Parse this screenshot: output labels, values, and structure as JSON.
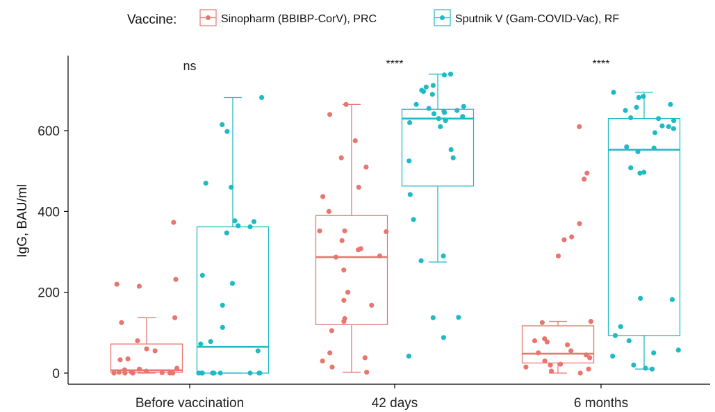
{
  "chart_data": {
    "type": "box",
    "title": "",
    "xlabel": "",
    "ylabel": "IgG, BAU/ml",
    "ylim": [
      -30,
      750
    ],
    "yticks": [
      0,
      200,
      400,
      600
    ],
    "categories": [
      "Before vaccination",
      "42 days",
      "6 months"
    ],
    "legend": {
      "title": "Vaccine:",
      "position": "top"
    },
    "annotations": [
      "ns",
      "****",
      "****"
    ],
    "grid": false,
    "series": [
      {
        "name": "Sinopharm (BBIBP-CorV), PRC",
        "color": "#E8766F",
        "boxes": [
          {
            "category": "Before vaccination",
            "whisker_low": 0,
            "q1": 2,
            "median": 7,
            "q3": 72,
            "whisker_high": 137
          },
          {
            "category": "42 days",
            "whisker_low": 2,
            "q1": 120,
            "median": 287,
            "q3": 390,
            "whisker_high": 665
          },
          {
            "category": "6 months",
            "whisker_low": 0,
            "q1": 25,
            "median": 48,
            "q3": 117,
            "whisker_high": 128
          }
        ],
        "points": [
          [
            0,
            373
          ],
          [
            0,
            232
          ],
          [
            0,
            220
          ],
          [
            0,
            215
          ],
          [
            0,
            137
          ],
          [
            0,
            125
          ],
          [
            0,
            80
          ],
          [
            0,
            60
          ],
          [
            0,
            55
          ],
          [
            0,
            35
          ],
          [
            0,
            33
          ],
          [
            0,
            12
          ],
          [
            0,
            10
          ],
          [
            0,
            8
          ],
          [
            0,
            5
          ],
          [
            0,
            3
          ],
          [
            0,
            2
          ],
          [
            0,
            1
          ],
          [
            0,
            0
          ],
          [
            0,
            0
          ],
          [
            0,
            0
          ],
          [
            0,
            0
          ],
          [
            0,
            0
          ],
          [
            0,
            0
          ],
          [
            1,
            665
          ],
          [
            1,
            640
          ],
          [
            1,
            575
          ],
          [
            1,
            533
          ],
          [
            1,
            510
          ],
          [
            1,
            460
          ],
          [
            1,
            437
          ],
          [
            1,
            400
          ],
          [
            1,
            352
          ],
          [
            1,
            352
          ],
          [
            1,
            350
          ],
          [
            1,
            328
          ],
          [
            1,
            308
          ],
          [
            1,
            305
          ],
          [
            1,
            290
          ],
          [
            1,
            287
          ],
          [
            1,
            255
          ],
          [
            1,
            200
          ],
          [
            1,
            180
          ],
          [
            1,
            168
          ],
          [
            1,
            135
          ],
          [
            1,
            128
          ],
          [
            1,
            105
          ],
          [
            1,
            50
          ],
          [
            1,
            38
          ],
          [
            1,
            30
          ],
          [
            1,
            15
          ],
          [
            1,
            2
          ],
          [
            2,
            610
          ],
          [
            2,
            495
          ],
          [
            2,
            480
          ],
          [
            2,
            370
          ],
          [
            2,
            337
          ],
          [
            2,
            330
          ],
          [
            2,
            290
          ],
          [
            2,
            128
          ],
          [
            2,
            125
          ],
          [
            2,
            85
          ],
          [
            2,
            80
          ],
          [
            2,
            77
          ],
          [
            2,
            70
          ],
          [
            2,
            55
          ],
          [
            2,
            50
          ],
          [
            2,
            45
          ],
          [
            2,
            38
          ],
          [
            2,
            30
          ],
          [
            2,
            22
          ],
          [
            2,
            20
          ],
          [
            2,
            15
          ],
          [
            2,
            10
          ],
          [
            2,
            5
          ],
          [
            2,
            0
          ]
        ]
      },
      {
        "name": "Sputnik V (Gam-COVID-Vac), RF",
        "color": "#1FBBC4",
        "boxes": [
          {
            "category": "Before vaccination",
            "whisker_low": 0,
            "q1": 0,
            "median": 65,
            "q3": 362,
            "whisker_high": 682
          },
          {
            "category": "42 days",
            "whisker_low": 275,
            "q1": 463,
            "median": 630,
            "q3": 653,
            "whisker_high": 740
          },
          {
            "category": "6 months",
            "whisker_low": 10,
            "q1": 93,
            "median": 553,
            "q3": 630,
            "whisker_high": 695
          }
        ],
        "points": [
          [
            0,
            682
          ],
          [
            0,
            615
          ],
          [
            0,
            598
          ],
          [
            0,
            470
          ],
          [
            0,
            460
          ],
          [
            0,
            377
          ],
          [
            0,
            375
          ],
          [
            0,
            365
          ],
          [
            0,
            362
          ],
          [
            0,
            347
          ],
          [
            0,
            242
          ],
          [
            0,
            222
          ],
          [
            0,
            168
          ],
          [
            0,
            113
          ],
          [
            0,
            78
          ],
          [
            0,
            72
          ],
          [
            0,
            55
          ],
          [
            0,
            0
          ],
          [
            0,
            0
          ],
          [
            0,
            0
          ],
          [
            0,
            0
          ],
          [
            0,
            0
          ],
          [
            0,
            0
          ],
          [
            0,
            0
          ],
          [
            0,
            0
          ],
          [
            0,
            0
          ],
          [
            1,
            740
          ],
          [
            1,
            738
          ],
          [
            1,
            712
          ],
          [
            1,
            708
          ],
          [
            1,
            700
          ],
          [
            1,
            697
          ],
          [
            1,
            690
          ],
          [
            1,
            665
          ],
          [
            1,
            660
          ],
          [
            1,
            655
          ],
          [
            1,
            650
          ],
          [
            1,
            648
          ],
          [
            1,
            645
          ],
          [
            1,
            642
          ],
          [
            1,
            635
          ],
          [
            1,
            630
          ],
          [
            1,
            625
          ],
          [
            1,
            620
          ],
          [
            1,
            610
          ],
          [
            1,
            553
          ],
          [
            1,
            533
          ],
          [
            1,
            525
          ],
          [
            1,
            442
          ],
          [
            1,
            380
          ],
          [
            1,
            290
          ],
          [
            1,
            278
          ],
          [
            1,
            138
          ],
          [
            1,
            137
          ],
          [
            1,
            88
          ],
          [
            1,
            42
          ],
          [
            2,
            695
          ],
          [
            2,
            685
          ],
          [
            2,
            682
          ],
          [
            2,
            665
          ],
          [
            2,
            658
          ],
          [
            2,
            650
          ],
          [
            2,
            632
          ],
          [
            2,
            630
          ],
          [
            2,
            625
          ],
          [
            2,
            612
          ],
          [
            2,
            610
          ],
          [
            2,
            605
          ],
          [
            2,
            595
          ],
          [
            2,
            560
          ],
          [
            2,
            557
          ],
          [
            2,
            548
          ],
          [
            2,
            508
          ],
          [
            2,
            497
          ],
          [
            2,
            495
          ],
          [
            2,
            185
          ],
          [
            2,
            182
          ],
          [
            2,
            115
          ],
          [
            2,
            93
          ],
          [
            2,
            80
          ],
          [
            2,
            57
          ],
          [
            2,
            50
          ],
          [
            2,
            42
          ],
          [
            2,
            20
          ],
          [
            2,
            12
          ],
          [
            2,
            10
          ]
        ]
      }
    ]
  }
}
